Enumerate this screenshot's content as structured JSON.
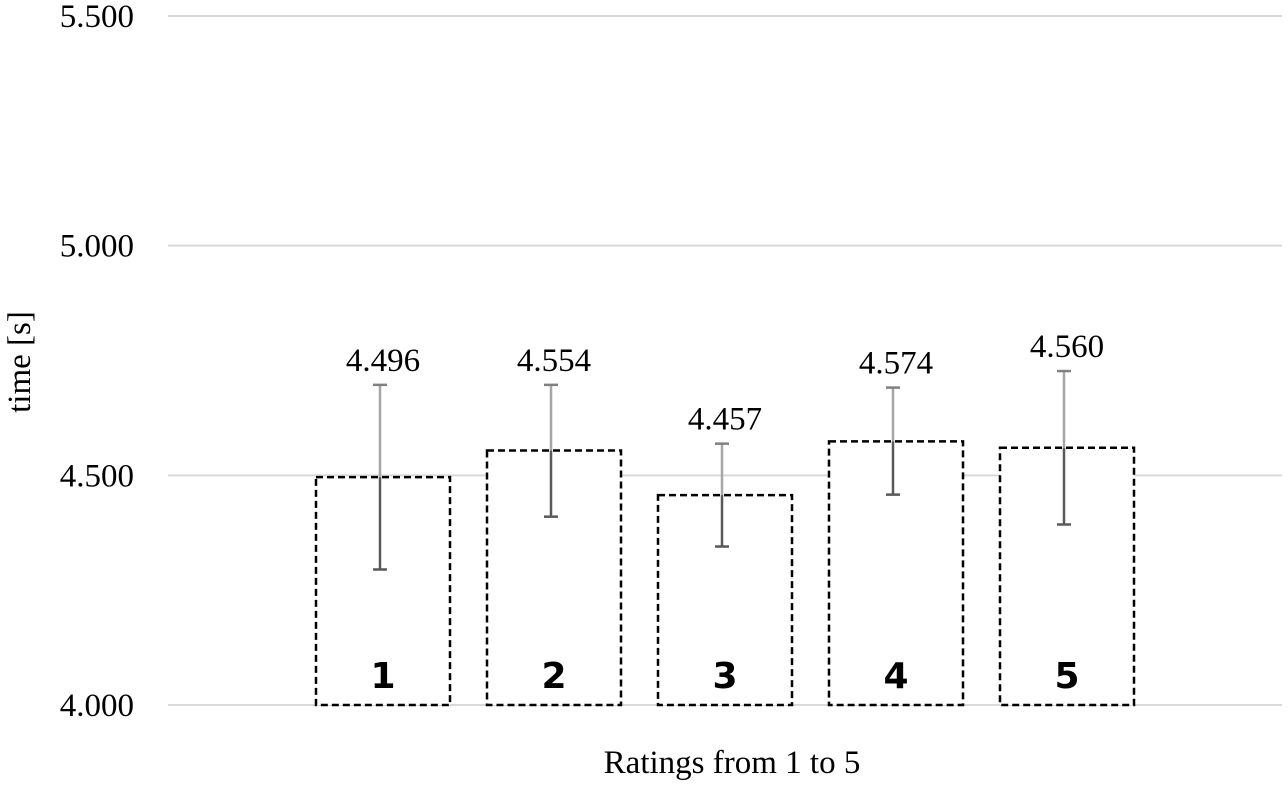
{
  "chart_data": {
    "type": "bar",
    "categories": [
      "1",
      "2",
      "3",
      "4",
      "5"
    ],
    "values": [
      4.496,
      4.554,
      4.457,
      4.574,
      4.56
    ],
    "value_labels": [
      "4.496",
      "4.554",
      "4.457",
      "4.574",
      "4.560"
    ],
    "error_bars": [
      {
        "low": 4.295,
        "high": 4.697
      },
      {
        "low": 4.41,
        "high": 4.697
      },
      {
        "low": 4.345,
        "high": 4.569
      },
      {
        "low": 4.458,
        "high": 4.691
      },
      {
        "low": 4.393,
        "high": 4.727
      }
    ],
    "xlabel": "Ratings from 1 to 5",
    "ylabel": "time [s]",
    "ylim": [
      4.0,
      5.5
    ],
    "yticks": [
      4.0,
      4.5,
      5.0,
      5.5
    ],
    "ytick_labels": [
      "4.000",
      "4.500",
      "5.000",
      "5.500"
    ],
    "grid": true,
    "bar_style": "dashed-outline",
    "colors": {
      "grid": "#d9d9d9",
      "bar_stroke": "#000000",
      "bar_fill": "#ffffff",
      "error_upper": "#a6a6a6",
      "error_lower": "#595959"
    }
  }
}
